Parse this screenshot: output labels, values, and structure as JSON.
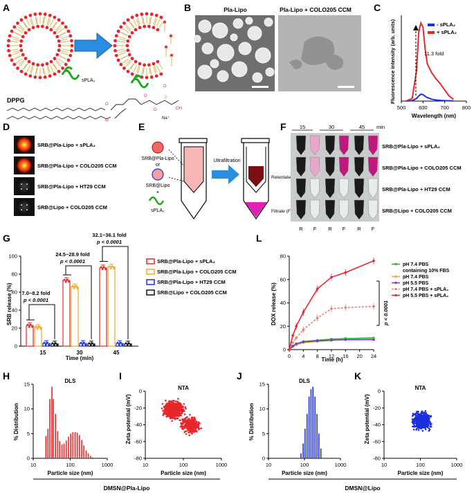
{
  "panel_letters": [
    "A",
    "B",
    "C",
    "D",
    "E",
    "F",
    "G",
    "L",
    "H",
    "I",
    "J",
    "K"
  ],
  "A": {
    "enzyme_label": "sPLA₂",
    "lipid_label": "DPPG",
    "na_label": "Na⁺"
  },
  "B": {
    "left_title": "Pla-Lipo",
    "right_title": "Pla-Lipo + COLO205 CCM"
  },
  "D": {
    "rows": [
      "SRB@Pla-Lipo + sPLA₂",
      "SRB@Pla-Lipo + COLO205 CCM",
      "SRB@Pla-Lipo + HT29 CCM",
      "SRB@Lipo + COLO205 CCM"
    ]
  },
  "E": {
    "item1": "SRB@Pla-Lipo",
    "or_label": "or",
    "item2": "SRB@Lipo",
    "plus_label": "+",
    "item3": "sPLA₂",
    "arrow_label": "Ultrafiltration",
    "retentate": "Retentate (R)",
    "filtrate": "Filtrate (F)"
  },
  "F": {
    "times": [
      "15",
      "30",
      "45"
    ],
    "unit": "min",
    "bottom": [
      "R",
      "F",
      "R",
      "F",
      "R",
      "F"
    ],
    "rows": [
      "SRB@Pla-Lipo + sPLA₂",
      "SRB@Pla-Lipo + COLO205 CCM",
      "SRB@Pla-Lipo + HT29 CCM",
      "SRB@Lipo + COLO205 CCM"
    ]
  },
  "footer": {
    "left": "DMSN@Pla-Lipo",
    "right": "DMSN@Lipo"
  },
  "colors": {
    "red": "#e8262a",
    "orange": "#f5a623",
    "blue": "#1b2fdc",
    "black": "#111111",
    "green": "#2bb52b",
    "salmon": "#f07d72",
    "pink_filtrate": "#e21fb4",
    "dark_red": "#7a0f14"
  },
  "chart_data": [
    {
      "id": "C",
      "type": "line",
      "xlabel": "Wavelength (nm)",
      "ylabel": "Fluorescence intensity (arb. units)",
      "xlim": [
        500,
        800
      ],
      "ylim": [
        0,
        1000
      ],
      "xticks": [
        500,
        600,
        700,
        800
      ],
      "annotation": "11.3 fold",
      "series": [
        {
          "name": "- sPLA₂",
          "color": "#1b2fdc",
          "x": [
            520,
            550,
            570,
            580,
            590,
            600,
            610,
            620,
            640,
            660,
            700,
            740
          ],
          "y": [
            0,
            5,
            30,
            60,
            80,
            75,
            55,
            40,
            22,
            12,
            5,
            2
          ]
        },
        {
          "name": "+ sPLA₂",
          "color": "#e8262a",
          "x": [
            520,
            550,
            570,
            580,
            590,
            600,
            610,
            620,
            640,
            660,
            680,
            700,
            720,
            740
          ],
          "y": [
            0,
            30,
            350,
            800,
            910,
            860,
            600,
            430,
            330,
            260,
            200,
            130,
            60,
            20
          ]
        }
      ]
    },
    {
      "id": "G",
      "type": "bar",
      "xlabel": "Time (min)",
      "ylabel": "SRB release (%)",
      "ylim": [
        0,
        100
      ],
      "yticks": [
        0,
        20,
        40,
        60,
        80,
        100
      ],
      "categories": [
        "15",
        "30",
        "45"
      ],
      "series": [
        {
          "name": "SRB@Pla-Lipo + sPLA₂",
          "color": "#e8262a",
          "values": [
            23,
            73,
            87
          ]
        },
        {
          "name": "SRB@Pla-Lipo + COLO205 CCM",
          "color": "#f5a623",
          "values": [
            21,
            66,
            88
          ]
        },
        {
          "name": "SRB@Pla-Lipo + HT29 CCM",
          "color": "#1b2fdc",
          "values": [
            3,
            3,
            3
          ]
        },
        {
          "name": "SRB@Lipo + COLO205 CCM",
          "color": "#111111",
          "values": [
            2.5,
            2.5,
            2.5
          ]
        }
      ],
      "annotations": [
        {
          "fold": "7.0~8.2 fold",
          "p": "p < 0.0001"
        },
        {
          "fold": "24.5~28.9 fold",
          "p": "p < 0.0001"
        },
        {
          "fold": "32.1~36.1 fold",
          "p": "p < 0.0001"
        }
      ]
    },
    {
      "id": "L",
      "type": "line",
      "xlabel": "Time (h)",
      "ylabel": "DOX release (%)",
      "xlim": [
        0,
        24
      ],
      "ylim": [
        0,
        80
      ],
      "xticks": [
        0,
        4,
        8,
        12,
        16,
        20,
        24
      ],
      "yticks": [
        0,
        20,
        40,
        60,
        80
      ],
      "significance": "p < 0.0001",
      "series": [
        {
          "name": "pH 7.4 PBS containing 10% FBS",
          "color": "#2bb52b",
          "dashed": false,
          "x": [
            0,
            1,
            2,
            4,
            8,
            12,
            16,
            24
          ],
          "y": [
            0,
            3,
            5,
            7,
            8,
            9,
            9.5,
            10
          ]
        },
        {
          "name": "pH 7.4 PBS",
          "color": "#f5a623",
          "dashed": false,
          "x": [
            0,
            1,
            2,
            4,
            8,
            12,
            16,
            24
          ],
          "y": [
            0,
            2.5,
            4,
            6,
            7,
            8,
            8.5,
            9
          ]
        },
        {
          "name": "pH 5.5 PBS",
          "color": "#7a3dc8",
          "dashed": false,
          "x": [
            0,
            1,
            2,
            4,
            8,
            12,
            16,
            24
          ],
          "y": [
            0,
            3,
            5,
            6.5,
            7.5,
            8,
            8.5,
            8.5
          ]
        },
        {
          "name": "pH 7.4 PBS + sPLA₂",
          "color": "#f07d72",
          "dashed": true,
          "x": [
            0,
            1,
            2,
            4,
            8,
            12,
            16,
            24
          ],
          "y": [
            0,
            6,
            10,
            17,
            27,
            35,
            36,
            37
          ]
        },
        {
          "name": "pH 5.5 PBS + sPLA₂",
          "color": "#e8262a",
          "dashed": false,
          "x": [
            0,
            1,
            2,
            4,
            8,
            12,
            16,
            24
          ],
          "y": [
            0,
            12,
            20,
            32,
            52,
            62,
            66,
            76
          ]
        }
      ]
    },
    {
      "id": "H",
      "type": "bar",
      "title": "DLS",
      "xlabel": "Particle size (nm)",
      "ylabel": "% Distribution",
      "xscale": "log",
      "xlim": [
        10,
        1000
      ],
      "ylim": [
        0,
        15
      ],
      "yticks": [
        0,
        5,
        10,
        15
      ],
      "x": [
        22,
        25,
        28,
        32,
        35,
        40,
        46,
        52,
        60,
        68,
        78,
        90,
        103,
        118,
        135,
        155,
        178,
        204,
        234,
        268,
        307,
        352,
        400
      ],
      "values": [
        4.5,
        6,
        12,
        14.5,
        12,
        9,
        5.5,
        3.5,
        2.8,
        3,
        3.6,
        4.4,
        5,
        5.3,
        5.3,
        5.2,
        4.7,
        3.7,
        2.6,
        1.6,
        1,
        0.5,
        0.2
      ],
      "color": "#e8262a"
    },
    {
      "id": "I",
      "type": "scatter",
      "title": "NTA",
      "xlabel": "Particle size (nm)",
      "ylabel": "Zeta potential (mV)",
      "xscale": "log",
      "xlim": [
        10,
        1000
      ],
      "ylim": [
        -80,
        0
      ],
      "yticks": [
        0,
        -20,
        -40,
        -60,
        -80
      ],
      "clusters": [
        {
          "x_center_nm": 55,
          "y_center_mV": -22,
          "count": 550
        },
        {
          "x_center_nm": 150,
          "y_center_mV": -40,
          "count": 300
        }
      ],
      "color": "#e8262a"
    },
    {
      "id": "J",
      "type": "bar",
      "title": "DLS",
      "xlabel": "Particle size (nm)",
      "ylabel": "% Distribution",
      "xscale": "log",
      "xlim": [
        10,
        1000
      ],
      "ylim": [
        0,
        15
      ],
      "yticks": [
        0,
        5,
        10,
        15
      ],
      "x": [
        80,
        92,
        104,
        118,
        134,
        152,
        172,
        196,
        222,
        252,
        286
      ],
      "values": [
        1,
        3,
        6,
        9,
        12.5,
        14,
        14.5,
        12.5,
        9,
        5,
        2
      ],
      "color": "#1b2fdc"
    },
    {
      "id": "K",
      "type": "scatter",
      "title": "NTA",
      "xlabel": "Particle size (nm)",
      "ylabel": "Zeta potential (mV)",
      "xscale": "log",
      "xlim": [
        10,
        1000
      ],
      "ylim": [
        -80,
        0
      ],
      "yticks": [
        0,
        -20,
        -40,
        -60,
        -80
      ],
      "clusters": [
        {
          "x_center_nm": 110,
          "y_center_mV": -35,
          "count": 550
        }
      ],
      "color": "#1b2fdc"
    }
  ]
}
